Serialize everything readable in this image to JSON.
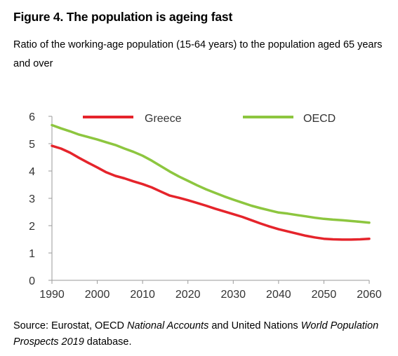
{
  "header": {
    "title": "Figure 4. The population is ageing fast",
    "subtitle": "Ratio of the working-age population (15-64 years) to the population aged 65 years and over"
  },
  "source": {
    "prefix": "Source: Eurostat, OECD ",
    "italic1": "National Accounts",
    "middle": " and United Nations ",
    "italic2": "World Population Prospects 2019",
    "suffix": " database."
  },
  "chart_data": {
    "type": "line",
    "title": "Figure 4. The population is ageing fast",
    "subtitle": "Ratio of the working-age population (15-64 years) to the population aged 65 years and over",
    "xlabel": "",
    "ylabel": "",
    "xlim": [
      1990,
      2060
    ],
    "ylim": [
      0,
      6
    ],
    "x_ticks": [
      1990,
      2000,
      2010,
      2020,
      2030,
      2040,
      2050,
      2060
    ],
    "y_ticks": [
      0,
      1,
      2,
      3,
      4,
      5,
      6
    ],
    "grid": false,
    "legend_position": "top",
    "series": [
      {
        "name": "Greece",
        "color": "#e5242b",
        "x": [
          1990,
          1992,
          1994,
          1996,
          1998,
          2000,
          2002,
          2004,
          2006,
          2008,
          2010,
          2012,
          2014,
          2016,
          2018,
          2020,
          2022,
          2024,
          2026,
          2028,
          2030,
          2032,
          2034,
          2036,
          2038,
          2040,
          2042,
          2044,
          2046,
          2048,
          2050,
          2052,
          2054,
          2056,
          2058,
          2060
        ],
        "y": [
          4.92,
          4.82,
          4.67,
          4.48,
          4.3,
          4.13,
          3.95,
          3.82,
          3.73,
          3.62,
          3.52,
          3.4,
          3.25,
          3.1,
          3.02,
          2.93,
          2.83,
          2.73,
          2.62,
          2.52,
          2.42,
          2.32,
          2.2,
          2.08,
          1.97,
          1.87,
          1.79,
          1.71,
          1.63,
          1.57,
          1.52,
          1.5,
          1.49,
          1.49,
          1.5,
          1.52
        ]
      },
      {
        "name": "OECD",
        "color": "#8dc63f",
        "x": [
          1990,
          1992,
          1994,
          1996,
          1998,
          2000,
          2002,
          2004,
          2006,
          2008,
          2010,
          2012,
          2014,
          2016,
          2018,
          2020,
          2022,
          2024,
          2026,
          2028,
          2030,
          2032,
          2034,
          2036,
          2038,
          2040,
          2042,
          2044,
          2046,
          2048,
          2050,
          2052,
          2054,
          2056,
          2058,
          2060
        ],
        "y": [
          5.68,
          5.56,
          5.45,
          5.33,
          5.24,
          5.15,
          5.05,
          4.95,
          4.82,
          4.7,
          4.56,
          4.38,
          4.18,
          3.98,
          3.8,
          3.64,
          3.48,
          3.33,
          3.2,
          3.07,
          2.95,
          2.84,
          2.73,
          2.64,
          2.56,
          2.48,
          2.44,
          2.39,
          2.34,
          2.29,
          2.25,
          2.22,
          2.2,
          2.17,
          2.14,
          2.11
        ]
      }
    ]
  }
}
